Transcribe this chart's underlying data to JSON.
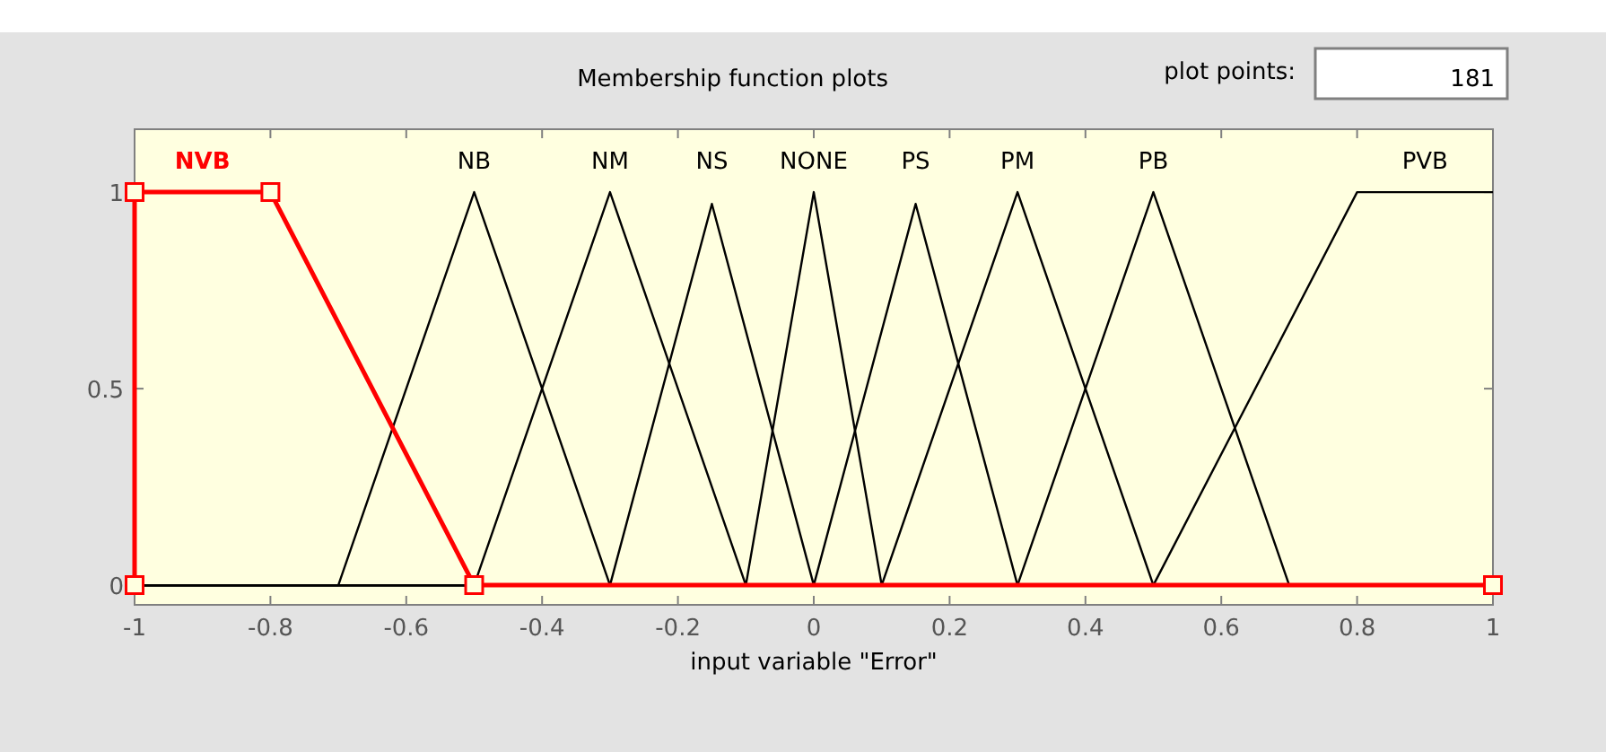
{
  "chart_data": {
    "type": "line",
    "title": "Membership function plots",
    "xlabel": "input variable \"Error\"",
    "annotations": [
      "plot points:",
      "181"
    ],
    "xlim": [
      -1,
      1
    ],
    "xticks": [
      -1,
      -0.8,
      -0.6,
      -0.4,
      -0.2,
      0,
      0.2,
      0.4,
      0.6,
      0.8,
      1
    ],
    "ylim": [
      -0.05,
      1.16
    ],
    "yticks": [
      0,
      0.5,
      1
    ],
    "grid": false,
    "series": [
      {
        "name": "NVB",
        "color": "#ff0000",
        "marker": "square",
        "x": [
          -1,
          -1,
          -0.8,
          -0.5,
          1
        ],
        "values": [
          0,
          1,
          1,
          0,
          0
        ]
      },
      {
        "name": "NB",
        "color": "#000000",
        "x": [
          -1,
          -0.7,
          -0.5,
          -0.3,
          1
        ],
        "values": [
          0,
          0,
          1,
          0,
          0
        ]
      },
      {
        "name": "NM",
        "color": "#000000",
        "x": [
          -1,
          -0.5,
          -0.3,
          -0.1,
          1
        ],
        "values": [
          0,
          0,
          1,
          0,
          0
        ]
      },
      {
        "name": "NS",
        "color": "#000000",
        "x": [
          -1,
          -0.3,
          -0.15,
          0,
          1
        ],
        "values": [
          0,
          0,
          0.97,
          0,
          0
        ]
      },
      {
        "name": "NONE",
        "color": "#000000",
        "x": [
          -1,
          -0.1,
          0,
          0.1,
          1
        ],
        "values": [
          0,
          0,
          1,
          0,
          0
        ]
      },
      {
        "name": "PS",
        "color": "#000000",
        "x": [
          -1,
          0,
          0.15,
          0.3,
          1
        ],
        "values": [
          0,
          0,
          0.97,
          0,
          0
        ]
      },
      {
        "name": "PM",
        "color": "#000000",
        "x": [
          -1,
          0.1,
          0.3,
          0.5,
          1
        ],
        "values": [
          0,
          0,
          1,
          0,
          0
        ]
      },
      {
        "name": "PB",
        "color": "#000000",
        "x": [
          -1,
          0.3,
          0.5,
          0.7,
          1
        ],
        "values": [
          0,
          0,
          1,
          0,
          0
        ]
      },
      {
        "name": "PVB",
        "color": "#000000",
        "x": [
          -1,
          0.5,
          0.8,
          1
        ],
        "values": [
          0,
          0,
          1,
          1
        ]
      }
    ]
  }
}
